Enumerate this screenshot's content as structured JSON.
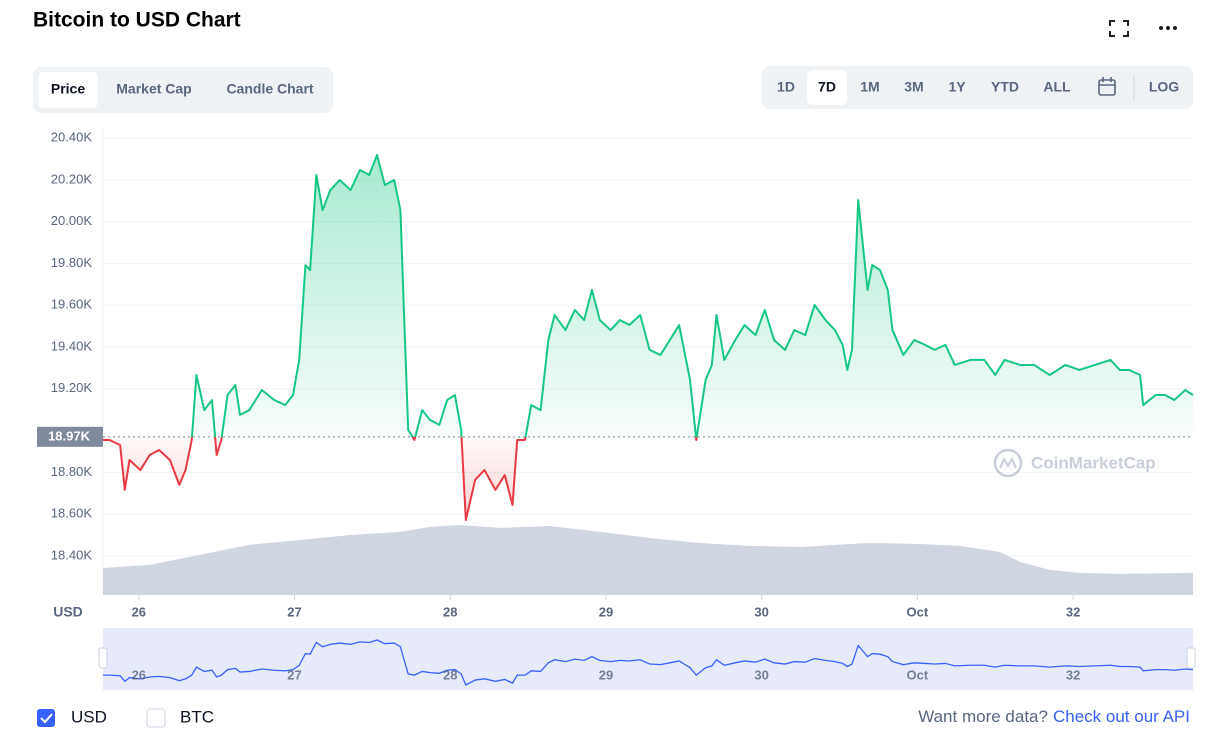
{
  "ui": {
    "title": "Bitcoin to USD Chart",
    "tabs": [
      "Price",
      "Market Cap",
      "Candle Chart"
    ],
    "ranges": [
      "1D",
      "7D",
      "1M",
      "3M",
      "1Y",
      "YTD",
      "ALL"
    ],
    "log": "LOG",
    "checkboxes": [
      "USD",
      "BTC"
    ],
    "footer_question": "Want more data?",
    "footer_link": "Check out our API"
  },
  "chart_data": {
    "type": "line",
    "y_unit": "USD",
    "watermark": "CoinMarketCap",
    "color": "#16c784",
    "down_color": "#ea3943",
    "reference": {
      "value": 18970,
      "label": "18.97K"
    },
    "x": [
      25.77,
      25.81,
      25.88,
      25.91,
      25.94,
      26.01,
      26.07,
      26.13,
      26.2,
      26.26,
      26.3,
      26.34,
      26.37,
      26.42,
      26.47,
      26.5,
      26.53,
      26.57,
      26.62,
      26.65,
      26.71,
      26.79,
      26.87,
      26.94,
      26.99,
      27.03,
      27.07,
      27.1,
      27.14,
      27.18,
      27.23,
      27.29,
      27.36,
      27.42,
      27.48,
      27.53,
      27.58,
      27.64,
      27.68,
      27.7,
      27.73,
      27.77,
      27.82,
      27.87,
      27.93,
      27.98,
      28.03,
      28.07,
      28.1,
      28.16,
      28.22,
      28.29,
      28.35,
      28.4,
      28.43,
      28.48,
      28.52,
      28.58,
      28.63,
      28.67,
      28.74,
      28.8,
      28.86,
      28.91,
      28.96,
      29.03,
      29.09,
      29.15,
      29.22,
      29.28,
      29.35,
      29.41,
      29.47,
      29.54,
      29.58,
      29.64,
      29.68,
      29.71,
      29.76,
      29.83,
      29.89,
      29.96,
      30.02,
      30.08,
      30.15,
      30.21,
      30.28,
      30.34,
      30.41,
      30.47,
      30.52,
      30.55,
      30.58,
      30.62,
      30.64,
      30.68,
      30.71,
      30.76,
      30.81,
      30.84,
      30.91,
      30.98,
      31.05,
      31.11,
      31.18,
      31.24,
      31.34,
      31.43,
      31.5,
      31.56,
      31.66,
      31.75,
      31.85,
      31.95,
      32.04,
      32.14,
      32.24,
      32.3,
      32.36,
      32.43,
      32.45,
      32.53,
      32.59,
      32.65,
      32.72,
      32.77
    ],
    "values": [
      18955,
      18955,
      18931,
      18716,
      18859,
      18811,
      18883,
      18907,
      18859,
      18740,
      18811,
      18955,
      19266,
      19098,
      19146,
      18883,
      18955,
      19170,
      19218,
      19075,
      19098,
      19194,
      19146,
      19122,
      19170,
      19338,
      19792,
      19768,
      20223,
      20055,
      20151,
      20199,
      20151,
      20247,
      20223,
      20319,
      20175,
      20199,
      20055,
      19625,
      19003,
      18955,
      19098,
      19051,
      19027,
      19146,
      19170,
      19003,
      18572,
      18764,
      18811,
      18716,
      18787,
      18644,
      18955,
      18955,
      19122,
      19098,
      19433,
      19553,
      19481,
      19577,
      19529,
      19673,
      19529,
      19481,
      19529,
      19505,
      19553,
      19386,
      19362,
      19433,
      19505,
      19242,
      18955,
      19242,
      19314,
      19553,
      19338,
      19433,
      19505,
      19457,
      19577,
      19433,
      19386,
      19481,
      19457,
      19601,
      19529,
      19481,
      19410,
      19290,
      19386,
      20103,
      19960,
      19673,
      19792,
      19768,
      19673,
      19481,
      19362,
      19433,
      19410,
      19386,
      19410,
      19314,
      19338,
      19338,
      19266,
      19338,
      19314,
      19314,
      19266,
      19314,
      19290,
      19314,
      19338,
      19290,
      19290,
      19266,
      19122,
      19170,
      19170,
      19146,
      19194,
      19170
    ],
    "volume_color": "#cfd5e1",
    "volume_x": [
      25.77,
      26.07,
      26.39,
      26.71,
      27.03,
      27.36,
      27.68,
      27.87,
      28.06,
      28.32,
      28.64,
      28.96,
      29.28,
      29.6,
      29.92,
      30.25,
      30.57,
      30.69,
      31.02,
      31.27,
      31.53,
      31.66,
      31.85,
      32.04,
      32.3,
      32.77
    ],
    "volume_values": [
      18342,
      18357,
      18405,
      18453,
      18476,
      18500,
      18515,
      18539,
      18548,
      18534,
      18543,
      18515,
      18486,
      18462,
      18448,
      18443,
      18457,
      18462,
      18457,
      18448,
      18419,
      18371,
      18333,
      18319,
      18314,
      18319
    ],
    "navigator_color": "#3861fb",
    "xlim": [
      25.77,
      32.77
    ],
    "xticks": [
      26,
      27,
      28,
      29,
      30,
      {
        "value": 31,
        "label": "Oct"
      },
      32
    ],
    "ylim": [
      18213,
      20448
    ],
    "yticks": [
      {
        "value": 20400,
        "label": "20.40K"
      },
      {
        "value": 20200,
        "label": "20.20K"
      },
      {
        "value": 20000,
        "label": "20.00K"
      },
      {
        "value": 19800,
        "label": "19.80K"
      },
      {
        "value": 19600,
        "label": "19.60K"
      },
      {
        "value": 19400,
        "label": "19.40K"
      },
      {
        "value": 19200,
        "label": "19.20K"
      },
      {
        "value": 18800,
        "label": "18.80K"
      },
      {
        "value": 18600,
        "label": "18.60K"
      },
      {
        "value": 18400,
        "label": "18.40K"
      }
    ],
    "grid": true
  }
}
